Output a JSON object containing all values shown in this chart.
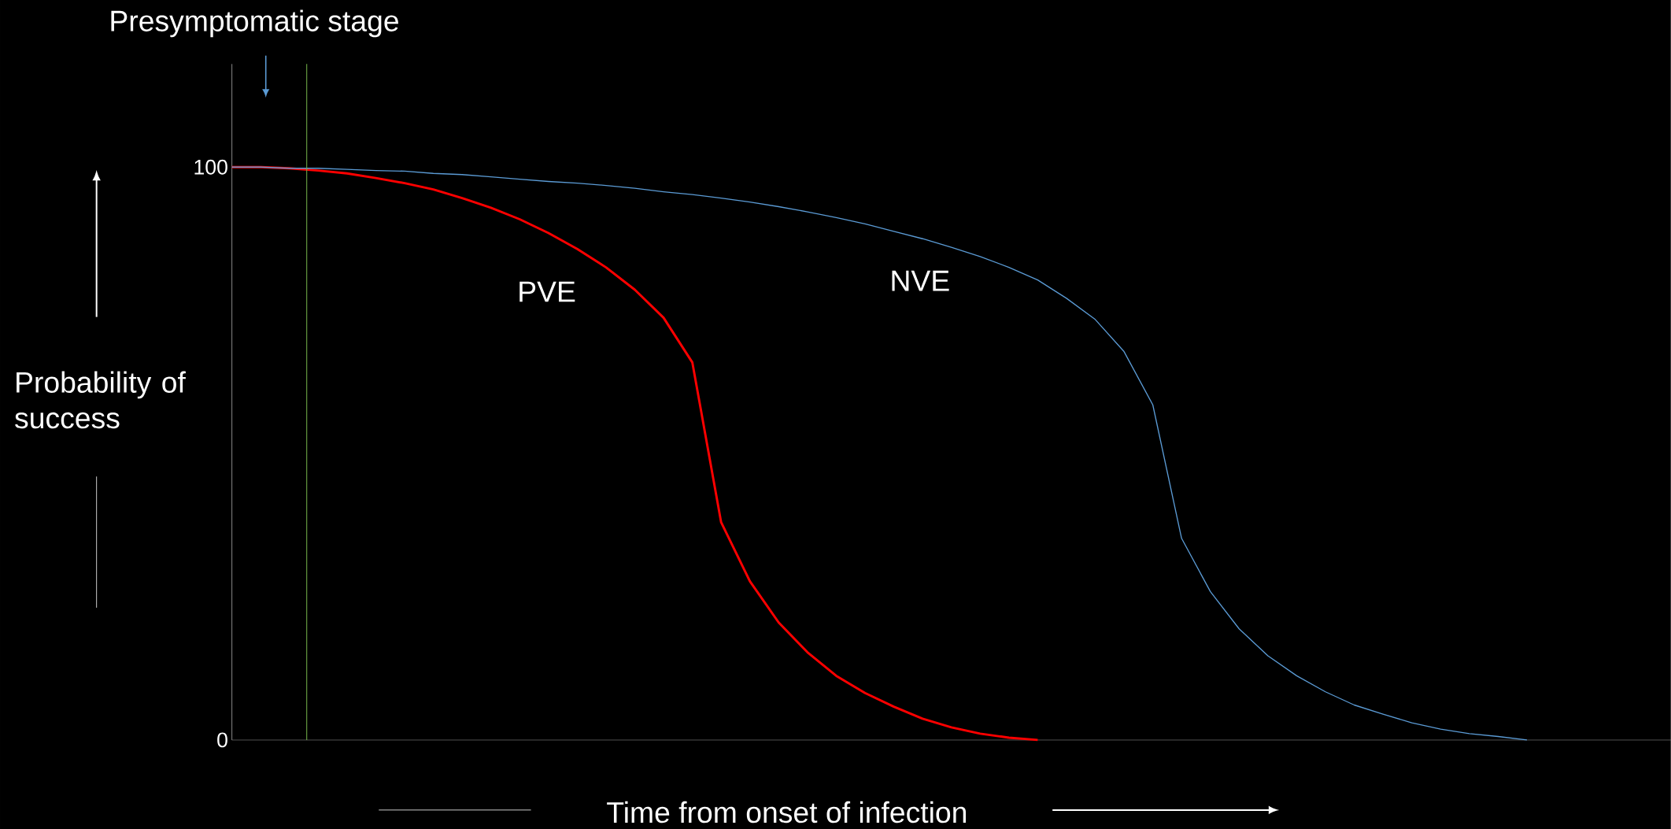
{
  "chart_data": {
    "type": "line",
    "xlabel": "Time from onset of infection",
    "ylabel": "Probability of success",
    "categories": [
      null,
      null,
      null,
      null,
      null,
      null,
      null,
      null,
      null,
      null,
      null,
      null,
      null,
      null,
      null,
      null,
      null,
      null,
      null,
      null,
      null,
      null,
      null,
      null,
      null,
      null,
      null,
      null,
      null,
      null,
      null,
      null,
      null,
      null,
      null,
      null,
      null,
      null,
      null,
      null,
      null,
      null,
      null,
      null,
      null,
      null,
      null,
      null,
      null,
      null,
      null
    ],
    "series": [
      {
        "name": "PVE",
        "color": "#ff0000",
        "values": [
          100,
          100,
          99.8,
          99.4,
          98.9,
          98.1,
          97.2,
          96.1,
          94.6,
          92.9,
          90.9,
          88.5,
          85.7,
          82.5,
          78.6,
          73.7,
          65.9,
          38.0,
          27.7,
          20.5,
          15.3,
          11.2,
          8.2,
          5.8,
          3.7,
          2.2,
          1.1,
          0.4,
          0,
          null,
          null,
          null,
          null,
          null,
          null,
          null,
          null,
          null,
          null,
          null,
          null,
          null,
          null,
          null,
          null,
          null,
          null,
          null,
          null,
          null,
          null
        ]
      },
      {
        "name": "NVE",
        "color": "#5b9bd5",
        "values": [
          100,
          100,
          99.8,
          99.8,
          99.6,
          99.4,
          99.3,
          98.9,
          98.7,
          98.3,
          97.9,
          97.5,
          97.2,
          96.8,
          96.3,
          95.7,
          95.2,
          94.6,
          93.9,
          93.1,
          92.2,
          91.2,
          90.1,
          88.8,
          87.5,
          86.0,
          84.4,
          82.5,
          80.3,
          77.1,
          73.4,
          67.8,
          58.5,
          35.2,
          25.9,
          19.4,
          14.7,
          11.2,
          8.4,
          6.1,
          4.5,
          3.0,
          1.9,
          1.1,
          0.6,
          0,
          null,
          null,
          null,
          null,
          null
        ]
      }
    ],
    "ylim": [
      0,
      118
    ],
    "yticks": [
      0,
      100
    ],
    "grid": false,
    "tick_labels": "y",
    "marker": "none",
    "line_style": "solid",
    "annotations": [
      "Presymptomatic stage"
    ]
  }
}
